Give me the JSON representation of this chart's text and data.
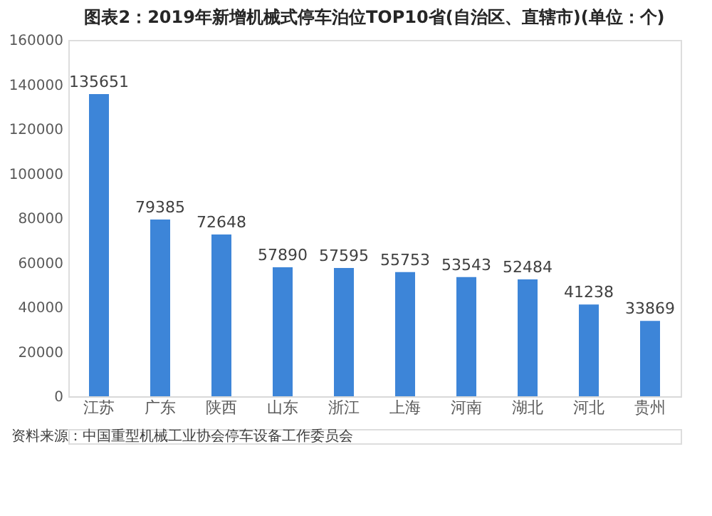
{
  "chart_data": {
    "type": "bar",
    "title": "图表2：2019年新增机械式停车泊位TOP10省(自治区、直辖市)(单位：个)",
    "categories": [
      "江苏",
      "广东",
      "陕西",
      "山东",
      "浙江",
      "上海",
      "河南",
      "湖北",
      "河北",
      "贵州"
    ],
    "values": [
      135651,
      79385,
      72648,
      57890,
      57595,
      55753,
      53543,
      52484,
      41238,
      33869
    ],
    "color": "#3d85d8",
    "data_labels": true,
    "ylim": [
      0,
      160000
    ],
    "yticks": [
      0,
      20000,
      40000,
      60000,
      80000,
      100000,
      120000,
      140000,
      160000
    ],
    "grid": false,
    "annotations": [
      "资料来源：中国重型机械工业协会停车设备工作委员会"
    ]
  }
}
